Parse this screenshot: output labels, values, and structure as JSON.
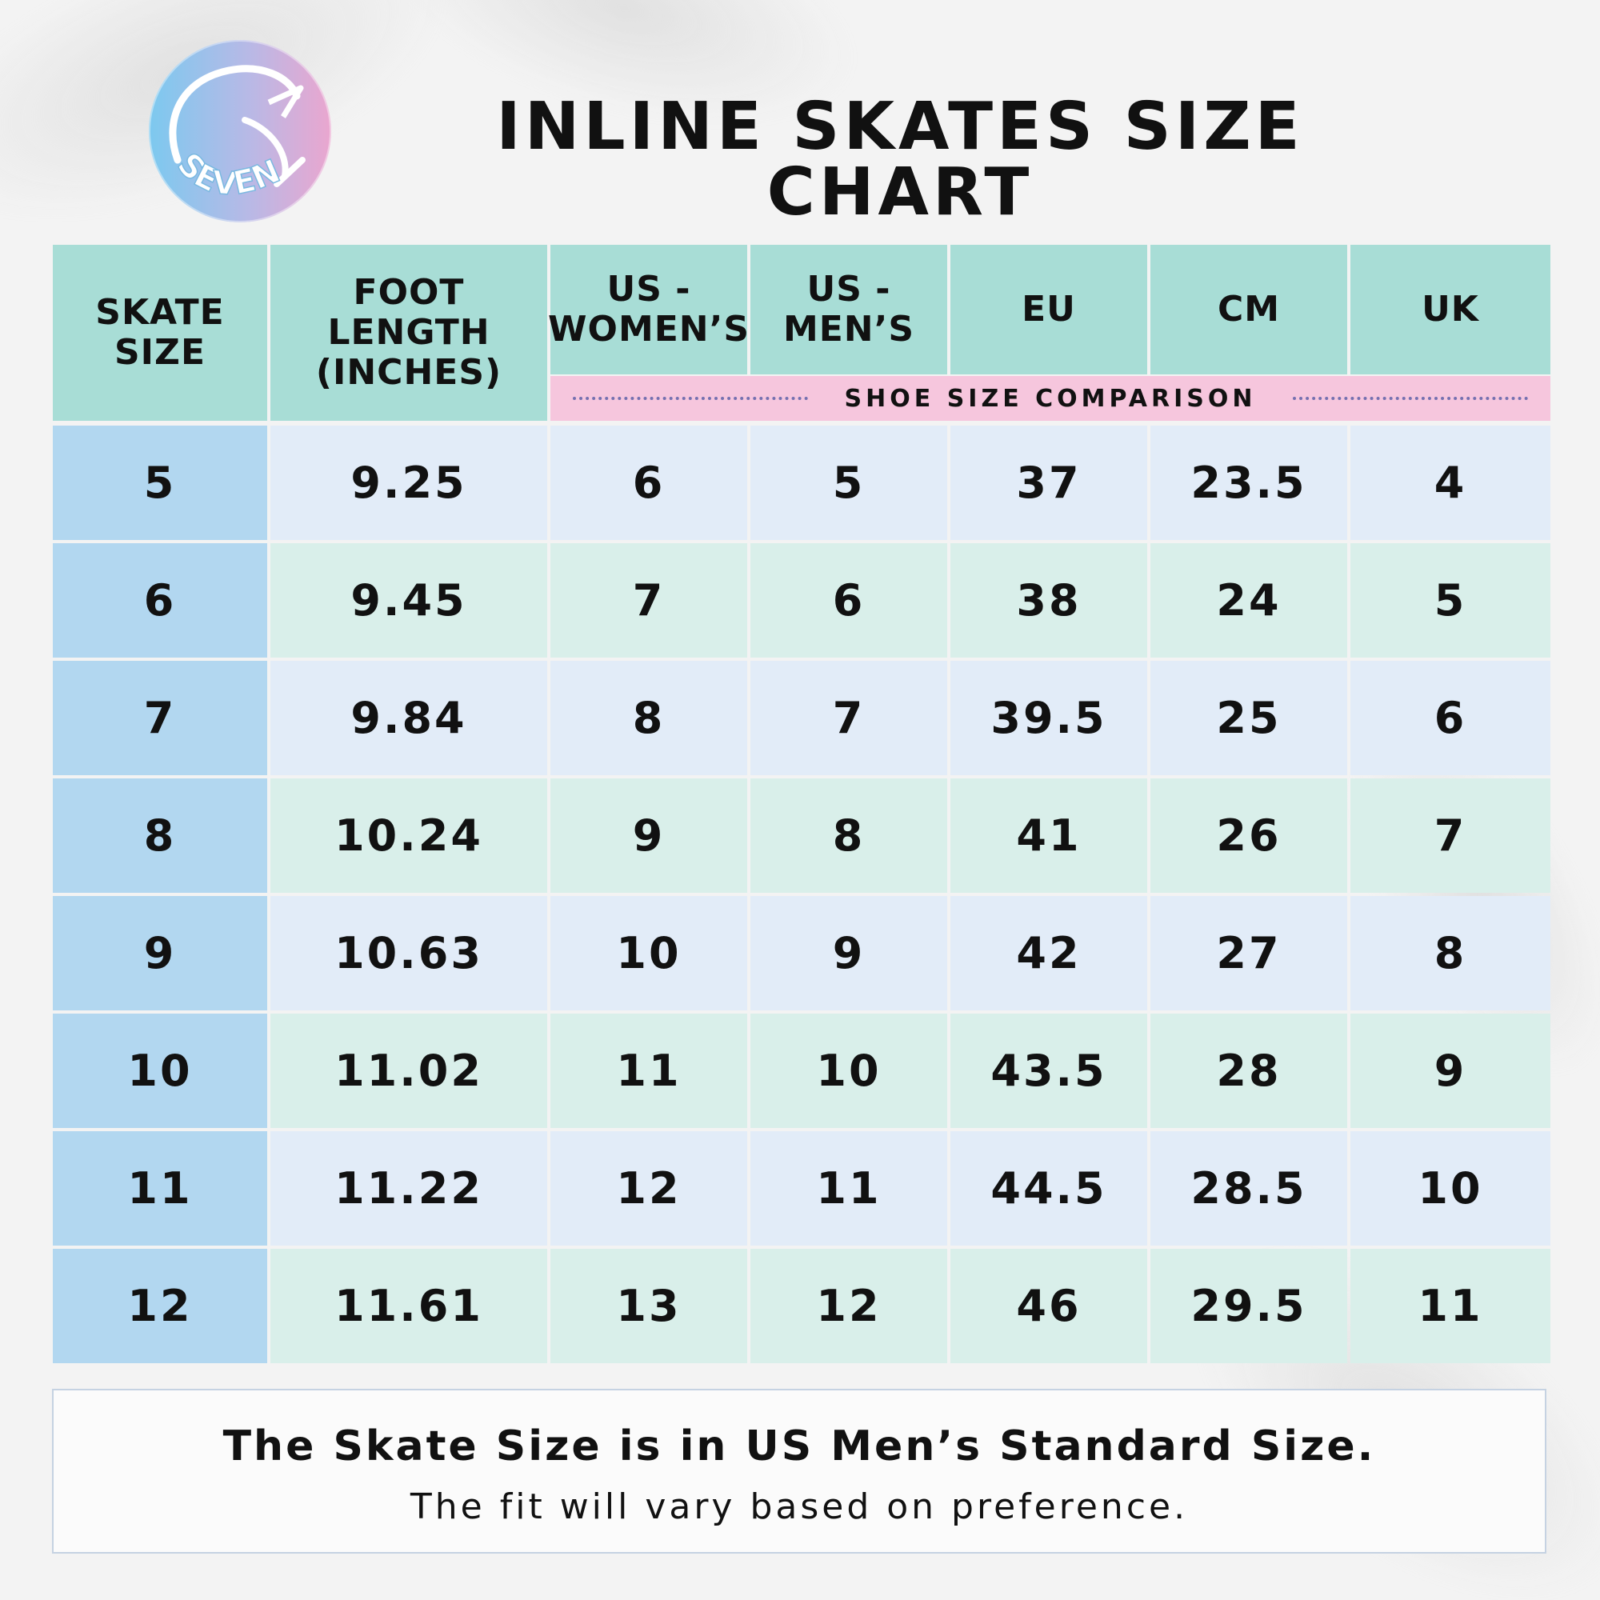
{
  "logo": {
    "text": "SEVEN",
    "colors": [
      "#7cc9ef",
      "#b8b9e6",
      "#eaa6cf"
    ]
  },
  "title": "INLINE SKATES SIZE CHART",
  "table": {
    "headers": {
      "skate_size": "SKATE SIZE",
      "foot_length": "FOOT LENGTH (INCHES)",
      "us_womens": "US - WOMEN’S",
      "us_mens": "US - MEN’S",
      "eu": "EU",
      "cm": "CM",
      "uk": "UK"
    },
    "group_label": "SHOE SIZE COMPARISON",
    "rows": [
      [
        "5",
        "9.25",
        "6",
        "5",
        "37",
        "23.5",
        "4"
      ],
      [
        "6",
        "9.45",
        "7",
        "6",
        "38",
        "24",
        "5"
      ],
      [
        "7",
        "9.84",
        "8",
        "7",
        "39.5",
        "25",
        "6"
      ],
      [
        "8",
        "10.24",
        "9",
        "8",
        "41",
        "26",
        "7"
      ],
      [
        "9",
        "10.63",
        "10",
        "9",
        "42",
        "27",
        "8"
      ],
      [
        "10",
        "11.02",
        "11",
        "10",
        "43.5",
        "28",
        "9"
      ],
      [
        "11",
        "11.22",
        "12",
        "11",
        "44.5",
        "28.5",
        "10"
      ],
      [
        "12",
        "11.61",
        "13",
        "12",
        "46",
        "29.5",
        "11"
      ]
    ]
  },
  "note": {
    "main": "The Skate Size is in US Men’s Standard Size.",
    "sub": "The fit will vary based on preference."
  },
  "colors": {
    "header_bg": "#a8ddd6",
    "group_bg": "#f6c6dd",
    "skate_col_bg": "#b2d7f0",
    "row_blue": "#e2ecf8",
    "row_green": "#d9efea"
  }
}
